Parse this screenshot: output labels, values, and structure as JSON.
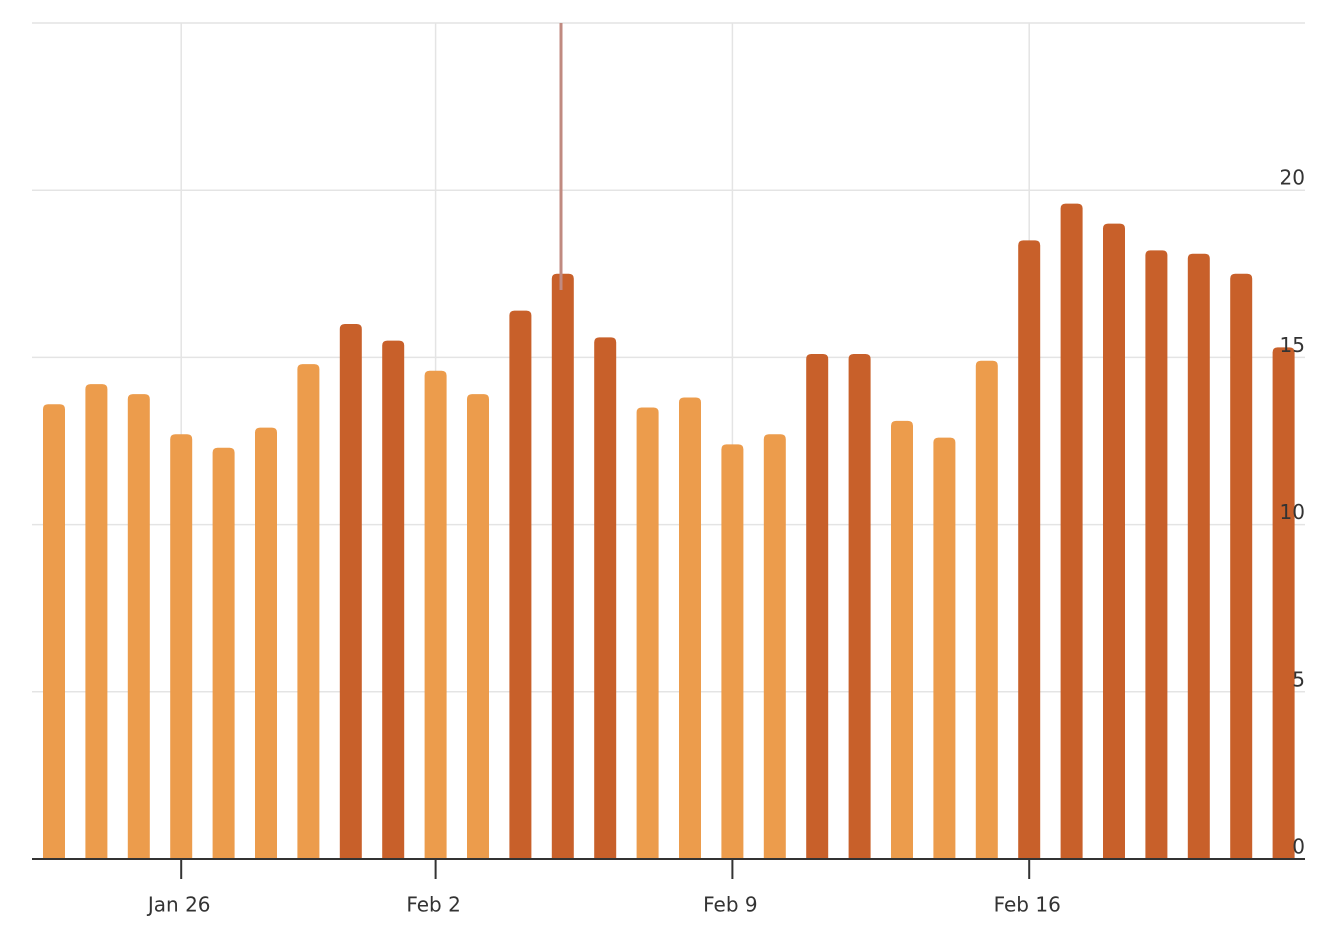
{
  "chart_data": {
    "type": "bar",
    "categories": [
      null,
      null,
      null,
      "Jan 26",
      null,
      null,
      null,
      null,
      null,
      "Feb 2",
      null,
      null,
      null,
      null,
      null,
      null,
      "Feb 9",
      null,
      null,
      null,
      null,
      null,
      null,
      "Feb 16",
      null,
      null,
      null,
      null,
      null,
      null
    ],
    "values": [
      13.6,
      14.2,
      13.9,
      12.7,
      12.3,
      12.9,
      14.8,
      16.0,
      15.5,
      14.6,
      13.9,
      16.4,
      17.5,
      15.6,
      13.5,
      13.8,
      12.4,
      12.7,
      15.1,
      15.1,
      13.1,
      12.6,
      14.9,
      18.5,
      19.6,
      19.0,
      18.2,
      18.1,
      17.5,
      15.3
    ],
    "colors": [
      "#ec9c4c",
      "#ec9c4c",
      "#ec9c4c",
      "#ec9c4c",
      "#ec9c4c",
      "#ec9c4c",
      "#ec9c4c",
      "#c8602a",
      "#c8602a",
      "#ec9c4c",
      "#ec9c4c",
      "#c8602a",
      "#c8602a",
      "#c8602a",
      "#ec9c4c",
      "#ec9c4c",
      "#ec9c4c",
      "#ec9c4c",
      "#c8602a",
      "#c8602a",
      "#ec9c4c",
      "#ec9c4c",
      "#ec9c4c",
      "#c8602a",
      "#c8602a",
      "#c8602a",
      "#c8602a",
      "#c8602a",
      "#c8602a",
      "#c8602a"
    ],
    "ylim": [
      0,
      25
    ],
    "yticks": [
      0,
      5,
      10,
      15,
      20
    ],
    "y_axis_side": "right",
    "grid": true
  }
}
